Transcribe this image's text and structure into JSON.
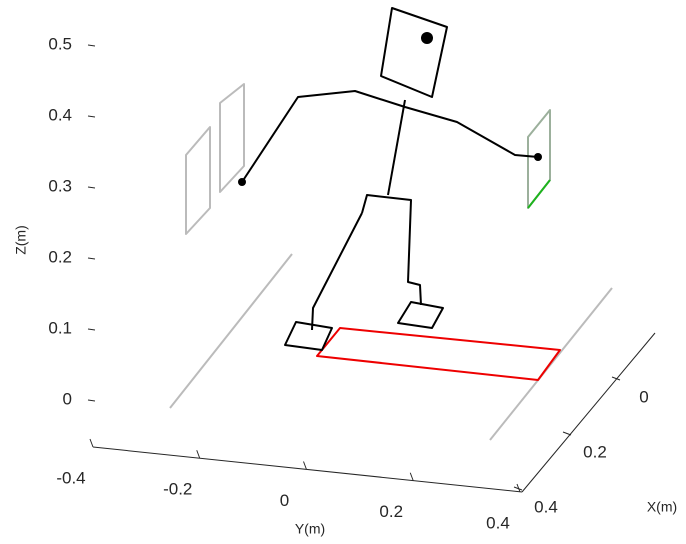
{
  "chart_data": {
    "type": "line3d",
    "zlabel": "Z(m)",
    "ylabel": "Y(m)",
    "xlabel": "X(m)",
    "zlim": [
      0,
      0.5
    ],
    "zticks": [
      0,
      0.1,
      0.2,
      0.3,
      0.4,
      0.5
    ],
    "ylim": [
      -0.4,
      0.4
    ],
    "yticks": [
      -0.4,
      -0.2,
      0,
      0.2,
      0.4
    ],
    "xlim": [
      0,
      0.4
    ],
    "xticks": [
      0,
      0.2,
      0.4
    ]
  }
}
